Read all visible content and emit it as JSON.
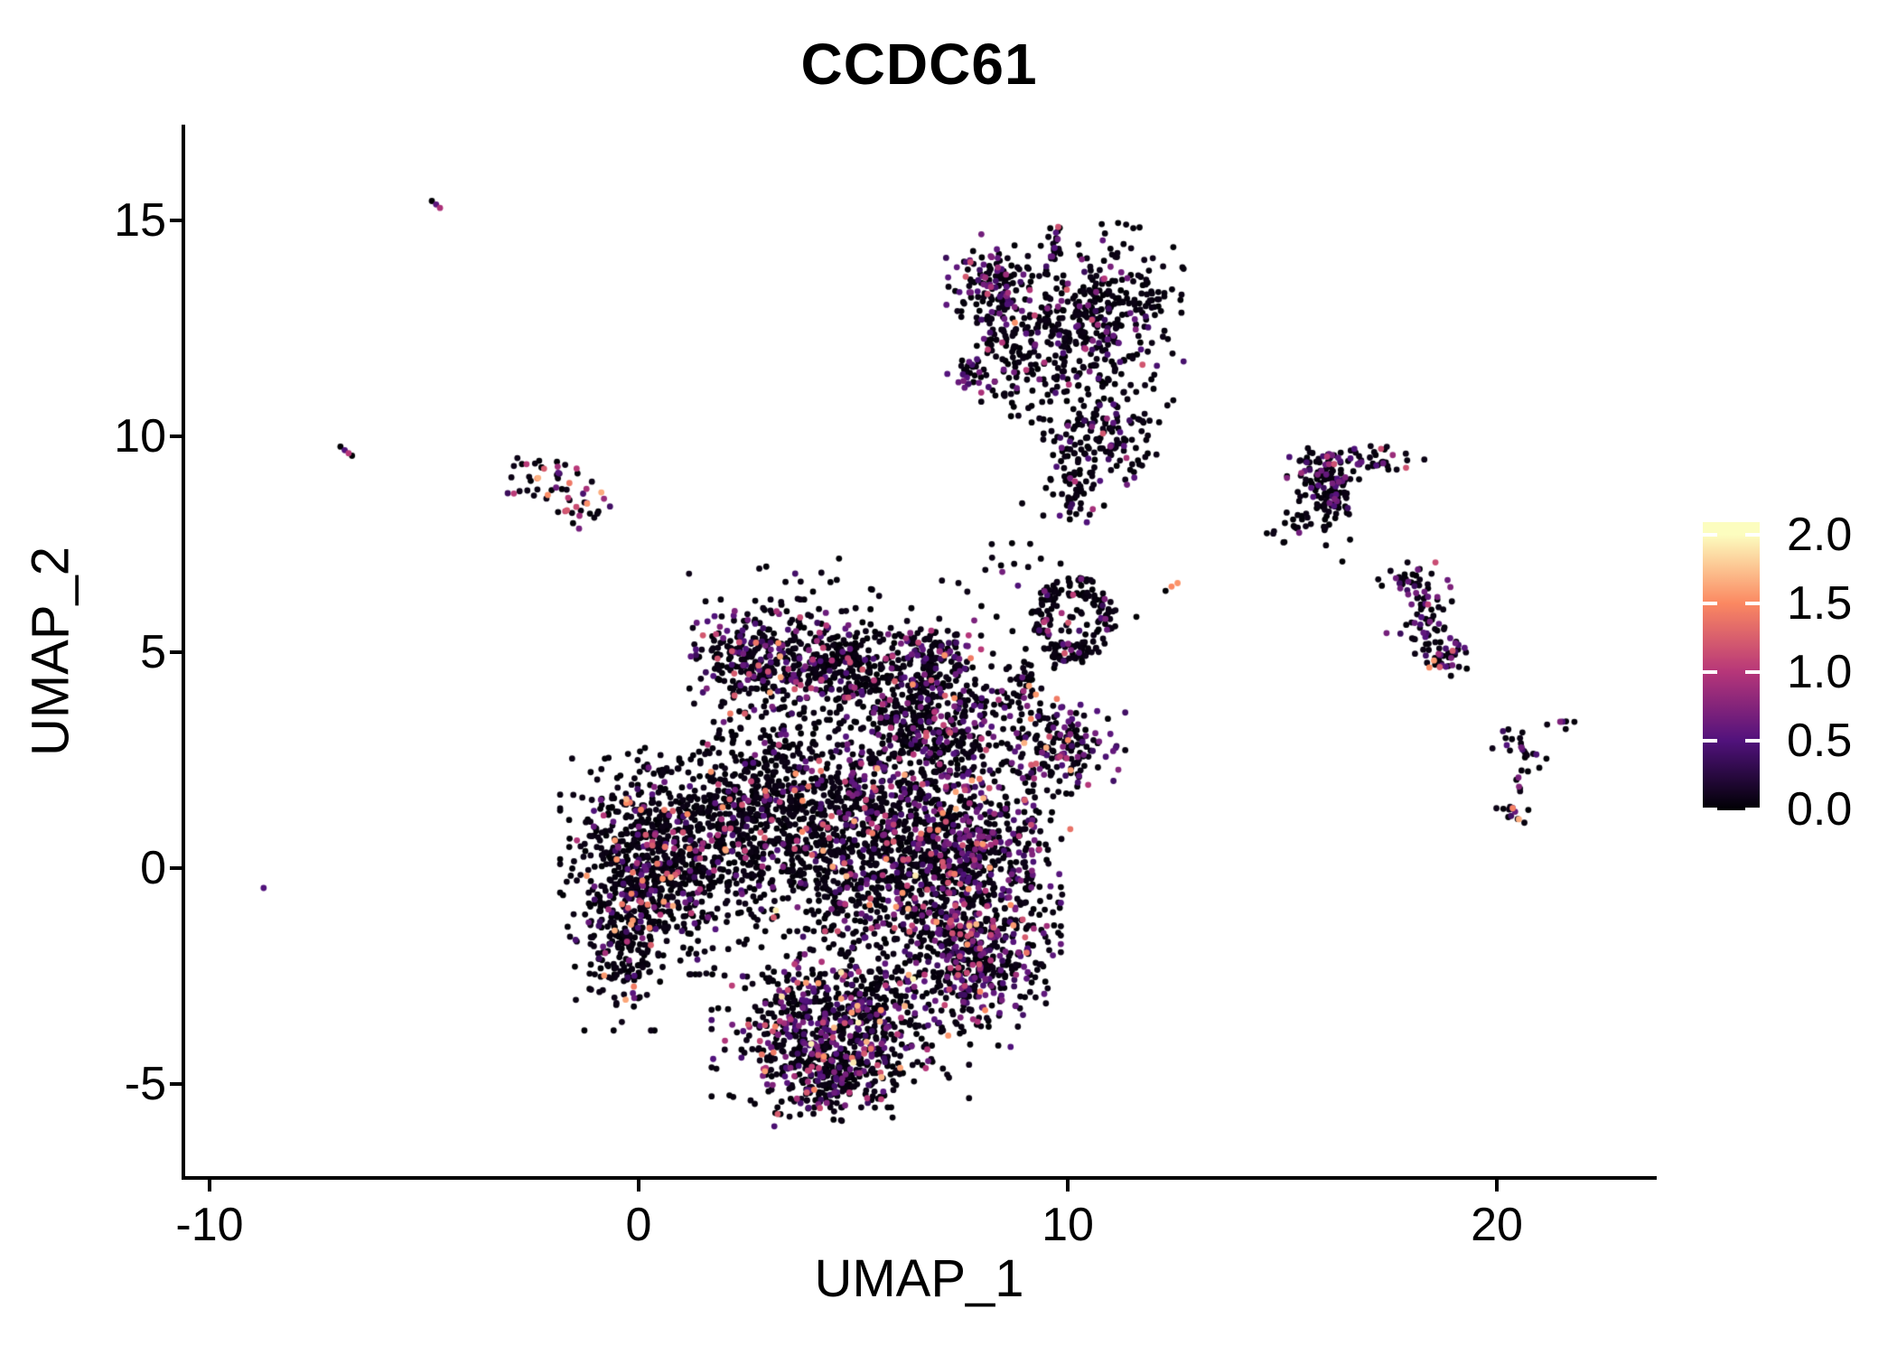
{
  "title": "CCDC61",
  "axes": {
    "x_label": "UMAP_1",
    "y_label": "UMAP_2",
    "x_ticks": [
      "-10",
      "0",
      "10",
      "20"
    ],
    "x_tick_values": [
      -10,
      0,
      10,
      20
    ],
    "y_ticks": [
      "15",
      "10",
      "5",
      "0",
      "-5"
    ],
    "y_tick_values": [
      15,
      10,
      5,
      0,
      -5
    ],
    "x_range": [
      -10.6,
      23.6
    ],
    "y_range": [
      -7.1,
      17.2
    ]
  },
  "legend": {
    "tick_labels": [
      "2.0",
      "1.5",
      "1.0",
      "0.5",
      "0.0"
    ],
    "tick_values": [
      2.0,
      1.5,
      1.0,
      0.5,
      0.0
    ],
    "vmin": 0.0,
    "vmax": 2.09
  },
  "colors": {
    "background": "#ffffff",
    "axis": "#000000",
    "text": "#000000",
    "colormap_name": "magma",
    "colormap_stops": [
      {
        "t": 0.0,
        "hex": "#000004"
      },
      {
        "t": 0.25,
        "hex": "#51127C"
      },
      {
        "t": 0.5,
        "hex": "#B63679"
      },
      {
        "t": 0.75,
        "hex": "#FB8861"
      },
      {
        "t": 1.0,
        "hex": "#FCFDBF"
      }
    ]
  },
  "chart_data": {
    "type": "scatter",
    "title": "CCDC61",
    "xlabel": "UMAP_1",
    "ylabel": "UMAP_2",
    "xlim": [
      -10.6,
      23.6
    ],
    "ylim": [
      -7.1,
      17.2
    ],
    "grid": false,
    "legend_position": "right",
    "point_radius_px": 3.4,
    "seed": 1234567,
    "value_buckets": [
      {
        "name": "zero-black",
        "v_lo": 0.0,
        "v_hi": 0.08
      },
      {
        "name": "purple",
        "v_lo": 0.35,
        "v_hi": 0.75
      },
      {
        "name": "pink",
        "v_lo": 0.85,
        "v_hi": 1.25
      },
      {
        "name": "salmon",
        "v_lo": 1.35,
        "v_hi": 1.7
      },
      {
        "name": "yellow",
        "v_lo": 1.85,
        "v_hi": 2.0
      }
    ],
    "clusters": [
      {
        "name": "top-center-arm-left",
        "shape": "gauss",
        "cx": 8.3,
        "cy": 13.6,
        "sx": 0.5,
        "sy": 0.45,
        "n": 130,
        "mix": [
          0.7,
          0.24,
          0.05,
          0.01,
          0
        ]
      },
      {
        "name": "top-center-mass-right",
        "shape": "gauss",
        "cx": 10.9,
        "cy": 12.9,
        "sx": 0.75,
        "sy": 0.85,
        "n": 300,
        "mix": [
          0.82,
          0.15,
          0.03,
          0,
          0
        ]
      },
      {
        "name": "top-center-mid",
        "shape": "gauss",
        "cx": 9.2,
        "cy": 12.0,
        "sx": 0.7,
        "sy": 0.7,
        "n": 200,
        "mix": [
          0.85,
          0.12,
          0.03,
          0,
          0
        ]
      },
      {
        "name": "top-center-lower-band",
        "shape": "gauss",
        "cx": 10.9,
        "cy": 10.0,
        "sx": 0.65,
        "sy": 0.55,
        "n": 150,
        "mix": [
          0.85,
          0.12,
          0.03,
          0,
          0
        ]
      },
      {
        "name": "top-center-tail",
        "shape": "gauss",
        "cx": 10.15,
        "cy": 8.9,
        "sx": 0.3,
        "sy": 0.6,
        "n": 60,
        "mix": [
          0.82,
          0.12,
          0.05,
          0.01,
          0
        ]
      },
      {
        "name": "top-center-top-streak",
        "shape": "gauss",
        "cx": 9.75,
        "cy": 14.5,
        "sx": 0.12,
        "sy": 0.35,
        "n": 20,
        "mix": [
          0.75,
          0.2,
          0.05,
          0,
          0
        ]
      },
      {
        "name": "top-center-left-nub",
        "shape": "gauss",
        "cx": 7.75,
        "cy": 11.4,
        "sx": 0.25,
        "sy": 0.2,
        "n": 25,
        "mix": [
          0.6,
          0.35,
          0.05,
          0,
          0
        ]
      },
      {
        "name": "right-wing-head",
        "shape": "gauss",
        "cx": 15.95,
        "cy": 9.2,
        "sx": 0.35,
        "sy": 0.3,
        "n": 80,
        "mix": [
          0.62,
          0.3,
          0.08,
          0,
          0
        ]
      },
      {
        "name": "right-wing-streak",
        "shape": "gauss",
        "cx": 17.1,
        "cy": 9.5,
        "sx": 0.55,
        "sy": 0.15,
        "n": 35,
        "mix": [
          0.7,
          0.2,
          0.1,
          0,
          0
        ]
      },
      {
        "name": "right-wing-body",
        "shape": "gauss",
        "cx": 16.2,
        "cy": 8.55,
        "sx": 0.35,
        "sy": 0.3,
        "n": 60,
        "mix": [
          0.8,
          0.18,
          0.02,
          0,
          0
        ]
      },
      {
        "name": "right-wing-sparse",
        "shape": "gauss",
        "cx": 15.5,
        "cy": 7.9,
        "sx": 0.45,
        "sy": 0.3,
        "n": 25,
        "mix": [
          0.9,
          0.1,
          0,
          0,
          0
        ]
      },
      {
        "name": "right-s-top",
        "shape": "gauss",
        "cx": 17.95,
        "cy": 6.6,
        "sx": 0.3,
        "sy": 0.2,
        "n": 30,
        "mix": [
          0.75,
          0.22,
          0.03,
          0,
          0
        ]
      },
      {
        "name": "right-s-upper",
        "shape": "gauss",
        "cx": 18.45,
        "cy": 6.1,
        "sx": 0.22,
        "sy": 0.25,
        "n": 25,
        "mix": [
          0.6,
          0.3,
          0.05,
          0.05,
          0
        ]
      },
      {
        "name": "right-s-mid",
        "shape": "gauss",
        "cx": 18.15,
        "cy": 5.6,
        "sx": 0.3,
        "sy": 0.25,
        "n": 20,
        "mix": [
          0.85,
          0.15,
          0,
          0,
          0
        ]
      },
      {
        "name": "right-s-bottom",
        "shape": "gauss",
        "cx": 18.75,
        "cy": 5.0,
        "sx": 0.35,
        "sy": 0.28,
        "n": 45,
        "mix": [
          0.55,
          0.35,
          0.05,
          0.05,
          0
        ]
      },
      {
        "name": "small-y-arm-left",
        "shape": "gauss",
        "cx": 20.25,
        "cy": 2.95,
        "sx": 0.25,
        "sy": 0.15,
        "n": 12,
        "mix": [
          0.7,
          0.3,
          0,
          0,
          0
        ]
      },
      {
        "name": "small-y-arm-right",
        "shape": "gauss",
        "cx": 20.8,
        "cy": 2.6,
        "sx": 0.2,
        "sy": 0.15,
        "n": 10,
        "mix": [
          0.6,
          0.4,
          0,
          0,
          0
        ]
      },
      {
        "name": "small-y-stem",
        "shape": "gauss",
        "cx": 20.55,
        "cy": 2.05,
        "sx": 0.08,
        "sy": 0.25,
        "n": 6,
        "mix": [
          0.9,
          0.1,
          0,
          0,
          0
        ]
      },
      {
        "name": "small-y-bottom-blob",
        "shape": "gauss",
        "cx": 20.35,
        "cy": 1.3,
        "sx": 0.16,
        "sy": 0.16,
        "n": 14,
        "mix": [
          0.45,
          0.3,
          0.15,
          0.1,
          0
        ]
      },
      {
        "name": "small-streak-right",
        "shape": "gauss",
        "cx": 21.5,
        "cy": 3.33,
        "sx": 0.18,
        "sy": 0.08,
        "n": 6,
        "mix": [
          0.7,
          0.3,
          0,
          0,
          0
        ]
      },
      {
        "name": "mid-ring",
        "shape": "ring",
        "cx": 10.15,
        "cy": 5.75,
        "r0": 0.55,
        "r1": 1.0,
        "n": 170,
        "mix": [
          0.87,
          0.09,
          0.02,
          0.02,
          0
        ]
      },
      {
        "name": "mid-ring-core",
        "shape": "gauss",
        "cx": 10.1,
        "cy": 5.7,
        "sx": 0.3,
        "sy": 0.3,
        "n": 18,
        "mix": [
          0.85,
          0.1,
          0.05,
          0,
          0
        ]
      },
      {
        "name": "left-small-upper",
        "shape": "gauss",
        "cx": -1.95,
        "cy": 9.1,
        "sx": 0.45,
        "sy": 0.3,
        "n": 30,
        "mix": [
          0.55,
          0.15,
          0.15,
          0.15,
          0
        ]
      },
      {
        "name": "left-small-lower",
        "shape": "gauss",
        "cx": -1.35,
        "cy": 8.35,
        "sx": 0.3,
        "sy": 0.25,
        "n": 22,
        "mix": [
          0.5,
          0.25,
          0.2,
          0.05,
          0
        ]
      },
      {
        "name": "left-small-nub",
        "shape": "gauss",
        "cx": -2.7,
        "cy": 8.9,
        "sx": 0.2,
        "sy": 0.15,
        "n": 8,
        "mix": [
          0.7,
          0.1,
          0.1,
          0.1,
          0
        ]
      },
      {
        "name": "central-crown-left",
        "shape": "gauss",
        "cx": 2.7,
        "cy": 4.9,
        "sx": 0.65,
        "sy": 0.55,
        "n": 280,
        "mix": [
          0.72,
          0.17,
          0.08,
          0.03,
          0
        ]
      },
      {
        "name": "central-crown-mid",
        "shape": "gauss",
        "cx": 4.7,
        "cy": 4.7,
        "sx": 0.75,
        "sy": 0.55,
        "n": 300,
        "mix": [
          0.8,
          0.14,
          0.05,
          0.01,
          0
        ]
      },
      {
        "name": "central-crown-right",
        "shape": "gauss",
        "cx": 6.9,
        "cy": 4.9,
        "sx": 0.45,
        "sy": 0.4,
        "n": 120,
        "mix": [
          0.75,
          0.2,
          0.04,
          0.01,
          0
        ]
      },
      {
        "name": "central-upper-right",
        "shape": "gauss",
        "cx": 6.6,
        "cy": 3.4,
        "sx": 0.8,
        "sy": 0.75,
        "n": 430,
        "mix": [
          0.72,
          0.22,
          0.05,
          0.01,
          0
        ]
      },
      {
        "name": "central-left-lobe",
        "shape": "gauss",
        "cx": 0.45,
        "cy": 0.3,
        "sx": 0.95,
        "sy": 1.15,
        "n": 750,
        "mix": [
          0.84,
          0.08,
          0.05,
          0.03,
          0
        ]
      },
      {
        "name": "central-mid",
        "shape": "gauss",
        "cx": 3.0,
        "cy": 1.4,
        "sx": 1.05,
        "sy": 1.15,
        "n": 680,
        "mix": [
          0.88,
          0.08,
          0.03,
          0.01,
          0
        ]
      },
      {
        "name": "central-mid-right",
        "shape": "gauss",
        "cx": 5.5,
        "cy": 0.6,
        "sx": 1.15,
        "sy": 1.25,
        "n": 820,
        "mix": [
          0.77,
          0.155,
          0.05,
          0.02,
          0.005
        ]
      },
      {
        "name": "central-right-band",
        "shape": "gauss",
        "cx": 7.5,
        "cy": 0.2,
        "sx": 0.7,
        "sy": 1.1,
        "n": 480,
        "mix": [
          0.66,
          0.26,
          0.06,
          0.02,
          0
        ]
      },
      {
        "name": "central-right-edge",
        "shape": "gauss",
        "cx": 8.9,
        "cy": 0.5,
        "sx": 0.5,
        "sy": 1.0,
        "n": 140,
        "mix": [
          0.7,
          0.24,
          0.05,
          0.01,
          0
        ]
      },
      {
        "name": "central-arm-upright",
        "shape": "gauss",
        "cx": 9.0,
        "cy": 3.9,
        "sx": 0.45,
        "sy": 0.5,
        "n": 80,
        "mix": [
          0.8,
          0.16,
          0.03,
          0.01,
          0
        ]
      },
      {
        "name": "central-arm-blob",
        "shape": "gauss",
        "cx": 9.9,
        "cy": 2.7,
        "sx": 0.6,
        "sy": 0.5,
        "n": 160,
        "mix": [
          0.72,
          0.22,
          0.05,
          0.01,
          0
        ]
      },
      {
        "name": "central-lowright-bulge",
        "shape": "gauss",
        "cx": 7.8,
        "cy": -2.1,
        "sx": 0.85,
        "sy": 0.85,
        "n": 460,
        "mix": [
          0.7,
          0.22,
          0.06,
          0.02,
          0
        ]
      },
      {
        "name": "central-bottom-lobe",
        "shape": "gauss",
        "cx": 4.7,
        "cy": -3.5,
        "sx": 1.25,
        "sy": 0.85,
        "n": 700,
        "mix": [
          0.7,
          0.195,
          0.07,
          0.03,
          0.005
        ]
      },
      {
        "name": "central-bottom-tip",
        "shape": "gauss",
        "cx": 4.4,
        "cy": -4.9,
        "sx": 0.7,
        "sy": 0.45,
        "n": 220,
        "mix": [
          0.72,
          0.2,
          0.06,
          0.02,
          0
        ]
      },
      {
        "name": "central-left-low-edge",
        "shape": "gauss",
        "cx": -0.4,
        "cy": -1.6,
        "sx": 0.5,
        "sy": 0.9,
        "n": 210,
        "mix": [
          0.8,
          0.1,
          0.06,
          0.04,
          0
        ]
      },
      {
        "name": "halo-above-crown",
        "shape": "gauss",
        "cx": 4.3,
        "cy": 6.3,
        "sx": 1.4,
        "sy": 0.5,
        "n": 28,
        "mix": [
          0.86,
          0.1,
          0.04,
          0,
          0
        ]
      },
      {
        "name": "halo-right-trail",
        "shape": "gauss",
        "cx": 8.9,
        "cy": 6.7,
        "sx": 0.5,
        "sy": 1.0,
        "n": 22,
        "mix": [
          0.9,
          0.08,
          0.02,
          0,
          0
        ]
      }
    ],
    "singleton_points": [
      {
        "x": -4.82,
        "y": 15.45,
        "v": 0
      },
      {
        "x": -4.72,
        "y": 15.37,
        "v": 0.55
      },
      {
        "x": -4.63,
        "y": 15.29,
        "v": 0.95
      },
      {
        "x": -6.95,
        "y": 9.76,
        "v": 0
      },
      {
        "x": -6.85,
        "y": 9.68,
        "v": 0.5
      },
      {
        "x": -6.76,
        "y": 9.61,
        "v": 1.0
      },
      {
        "x": -6.68,
        "y": 9.55,
        "v": 0
      },
      {
        "x": -8.74,
        "y": -0.46,
        "v": 0.5
      },
      {
        "x": 12.28,
        "y": 6.42,
        "v": 0
      },
      {
        "x": 12.42,
        "y": 6.52,
        "v": 1.5
      },
      {
        "x": 12.56,
        "y": 6.6,
        "v": 1.55
      },
      {
        "x": 11.6,
        "y": 5.82,
        "v": 0
      },
      {
        "x": 16.4,
        "y": 7.1,
        "v": 0
      },
      {
        "x": 15.05,
        "y": 7.55,
        "v": 0
      },
      {
        "x": 19.25,
        "y": 5.1,
        "v": 0.55
      },
      {
        "x": 19.3,
        "y": 4.62,
        "v": 0
      }
    ]
  }
}
